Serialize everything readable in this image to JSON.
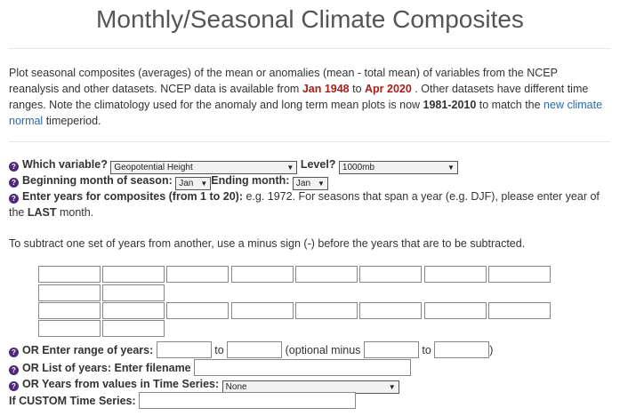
{
  "title": "Monthly/Seasonal Climate Composites",
  "intro": {
    "p1": "Plot seasonal composites (averages) of the mean or anomalies (mean - total mean) of variables from the NCEP reanalysis and other datasets. NCEP data is available from ",
    "start": "Jan 1948",
    "to": " to ",
    "end": "Apr 2020",
    "p2": " . Other datasets have different time ranges. Note the climatology used for the anomaly and long term mean plots is now ",
    "clim": "1981-2010",
    "p3": " to match the ",
    "link": "new climate normal",
    "p4": " timeperiod."
  },
  "help_glyph": "?",
  "variable": {
    "label": "Which variable?",
    "value": "Geopotential Height"
  },
  "level": {
    "label": "Level?",
    "value": "1000mb"
  },
  "begin_month": {
    "label": "Beginning month of season:",
    "value": "Jan"
  },
  "end_month": {
    "label": "Ending month:",
    "value": "Jan"
  },
  "years": {
    "label": "Enter years for composites (from 1 to 20):",
    "text1": " e.g. 1972. For seasons that span a year (e.g. DJF), please enter year of",
    "text2a": "the ",
    "last": "LAST",
    "text2b": " month."
  },
  "subtract_note": "To subtract one set of years from another, use a minus sign (-) before the years that are to be subtracted.",
  "range": {
    "label": "OR Enter range of years:",
    "to": "to",
    "optional": "(optional minus",
    "to2": "to",
    "close": ")"
  },
  "list": {
    "label": "OR List of years: Enter filename"
  },
  "timeseries": {
    "label": "OR Years from values in Time Series:",
    "value": "None"
  },
  "custom": {
    "label": "If CUSTOM Time Series:"
  },
  "arrow": "▼"
}
